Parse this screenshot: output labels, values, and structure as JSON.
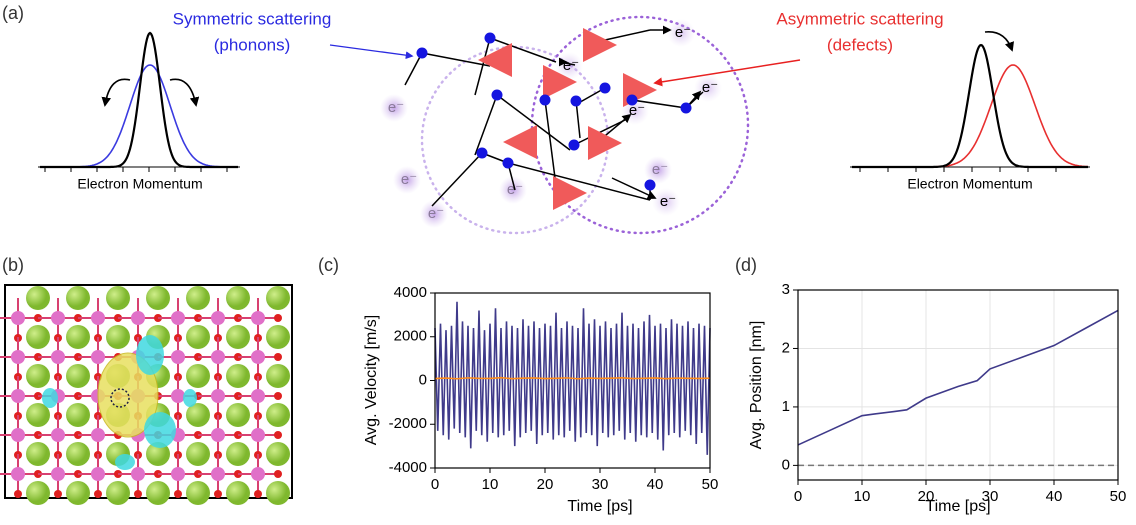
{
  "panel_labels": [
    "(a)",
    "(b)",
    "(c)",
    "(d)"
  ],
  "diagram": {
    "symmetric_title": "Symmetric scattering",
    "symmetric_subtitle": "(phonons)",
    "asymmetric_title": "Asymmetric scattering",
    "asymmetric_subtitle": "(defects)",
    "left_axis_label": "Electron Momentum",
    "right_axis_label": "Electron Momentum",
    "electron_labels": [
      "e⁻",
      "e⁻",
      "e⁻",
      "e⁻",
      "e⁻",
      "e⁻",
      "e⁻",
      "e⁻",
      "e⁻",
      "e⁻"
    ]
  },
  "chart_data": [
    {
      "type": "line",
      "xlabel": "Time [ps]",
      "ylabel": "Avg. Velocity [m/s]",
      "xlim": [
        0,
        50
      ],
      "ylim": [
        -4000,
        4000
      ],
      "xticks": [
        0,
        10,
        20,
        30,
        40,
        50
      ],
      "yticks": [
        -4000,
        -2000,
        0,
        2000,
        4000
      ],
      "grid": false,
      "series": [
        {
          "color": "#3f3a8a",
          "x": [
            0,
            0.5,
            1,
            1.5,
            2,
            2.5,
            3,
            3.5,
            4,
            4.5,
            5,
            5.5,
            6,
            6.5,
            7,
            7.5,
            8,
            8.5,
            9,
            9.5,
            10,
            10.5,
            11,
            11.5,
            12,
            12.5,
            13,
            13.5,
            14,
            14.5,
            15,
            15.5,
            16,
            16.5,
            17,
            17.5,
            18,
            18.5,
            19,
            19.5,
            20,
            20.5,
            21,
            21.5,
            22,
            22.5,
            23,
            23.5,
            24,
            24.5,
            25,
            25.5,
            26,
            26.5,
            27,
            27.5,
            28,
            28.5,
            29,
            29.5,
            30,
            30.5,
            31,
            31.5,
            32,
            32.5,
            33,
            33.5,
            34,
            34.5,
            35,
            35.5,
            36,
            36.5,
            37,
            37.5,
            38,
            38.5,
            39,
            39.5,
            40,
            40.5,
            41,
            41.5,
            42,
            42.5,
            43,
            43.5,
            44,
            44.5,
            45,
            45.5,
            46,
            46.5,
            47,
            47.5,
            48,
            48.5,
            49,
            49.5,
            50
          ],
          "values": [
            2400,
            -2300,
            2600,
            -2500,
            2300,
            -2700,
            2500,
            -2200,
            3600,
            -2400,
            2700,
            -2600,
            2500,
            -3100,
            2400,
            -2300,
            3200,
            -2500,
            2300,
            -2800,
            2600,
            -2400,
            3300,
            -2600,
            2400,
            -2500,
            2700,
            -2300,
            2500,
            -3000,
            2400,
            -2600,
            2800,
            -2400,
            2500,
            -2300,
            2700,
            -2900,
            2400,
            -2500,
            2600,
            -2400,
            2500,
            -2700,
            3100,
            -2500,
            2400,
            -2600,
            2700,
            -2300,
            2500,
            -2800,
            2400,
            -2600,
            3300,
            -2400,
            2600,
            -2500,
            2800,
            -3000,
            2500,
            -2400,
            2700,
            -2600,
            2400,
            -2500,
            2600,
            -2300,
            3100,
            -2700,
            2500,
            -2400,
            2600,
            -2800,
            2400,
            -2500,
            2700,
            -2600,
            3000,
            -2400,
            2500,
            -2700,
            2600,
            -3200,
            2400,
            -2500,
            2800,
            -2400,
            2600,
            -2600,
            2500,
            -2300,
            2700,
            -2500,
            2400,
            -2900,
            2600,
            -2400,
            2500,
            -3400,
            2400
          ]
        },
        {
          "color": "#ff8c1a",
          "x": [
            0,
            2,
            4,
            6,
            8,
            10,
            12,
            14,
            16,
            18,
            20,
            22,
            24,
            26,
            28,
            30,
            32,
            34,
            36,
            38,
            40,
            42,
            44,
            46,
            48,
            50
          ],
          "values": [
            90,
            110,
            80,
            120,
            100,
            95,
            130,
            85,
            105,
            115,
            90,
            100,
            120,
            80,
            110,
            95,
            105,
            125,
            90,
            100,
            115,
            85,
            110,
            100,
            95,
            105
          ]
        }
      ]
    },
    {
      "type": "line",
      "xlabel": "Time [ps]",
      "ylabel": "Avg. Position [nm]",
      "xlim": [
        0,
        50
      ],
      "ylim": [
        -0.25,
        3
      ],
      "xticks": [
        0,
        10,
        20,
        30,
        40,
        50
      ],
      "yticks": [
        0,
        1,
        2,
        3
      ],
      "grid": true,
      "hline": 0,
      "hline_color": "#777777",
      "color": "#3f3a8a",
      "x": [
        0,
        5,
        10,
        12,
        15,
        17,
        20,
        25,
        28,
        30,
        35,
        40,
        45,
        50
      ],
      "values": [
        0.35,
        0.6,
        0.85,
        0.88,
        0.92,
        0.95,
        1.15,
        1.35,
        1.45,
        1.65,
        1.85,
        2.05,
        2.35,
        2.65
      ]
    }
  ]
}
